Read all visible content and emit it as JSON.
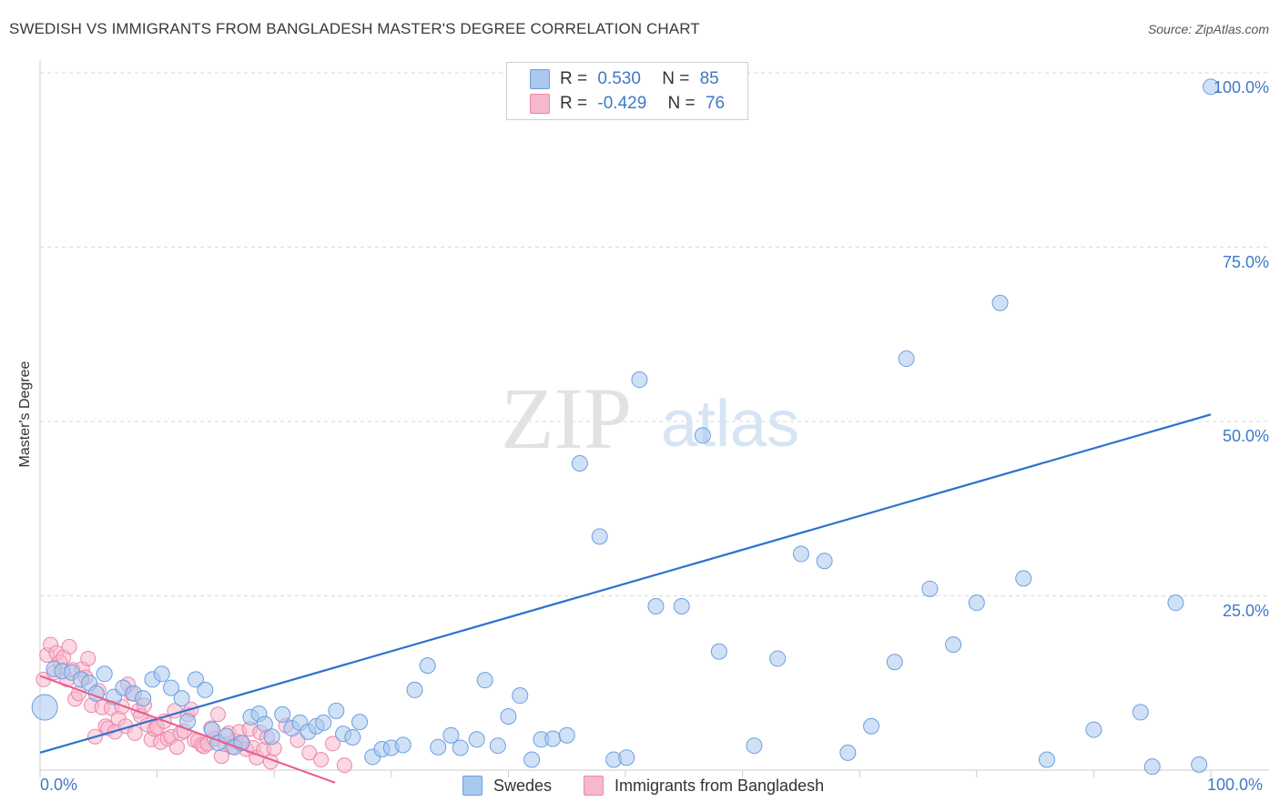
{
  "title": "SWEDISH VS IMMIGRANTS FROM BANGLADESH MASTER'S DEGREE CORRELATION CHART",
  "source": "Source: ZipAtlas.com",
  "watermark": {
    "zip": "ZIP",
    "atlas": "atlas"
  },
  "colors": {
    "blue_fill": "#a9c9ef",
    "blue_stroke": "#6b9fe0",
    "blue_line": "#2e72cc",
    "pink_fill": "#f6b8cd",
    "pink_stroke": "#ee86a8",
    "pink_line": "#e85c8a",
    "tick_text": "#3f78c8",
    "grid": "#d9d9d9"
  },
  "legend_top": {
    "rows": [
      {
        "r_label": "R =",
        "r_value": "0.530",
        "n_label": "N =",
        "n_value": "85"
      },
      {
        "r_label": "R =",
        "r_value": "-0.429",
        "n_label": "N =",
        "n_value": "76"
      }
    ]
  },
  "chart_data": {
    "type": "scatter",
    "title": "SWEDISH VS IMMIGRANTS FROM BANGLADESH MASTER'S DEGREE CORRELATION CHART",
    "xlabel": "",
    "ylabel": "Master's Degree",
    "xlim": [
      0,
      100
    ],
    "ylim": [
      0,
      100
    ],
    "x_ticks": [
      "0.0%",
      "100.0%"
    ],
    "y_ticks": [
      "25.0%",
      "50.0%",
      "75.0%",
      "100.0%"
    ],
    "y_tick_values": [
      25,
      50,
      75,
      100
    ],
    "legend_position": "bottom",
    "series": [
      {
        "name": "Swedes",
        "r": 0.53,
        "n": 85,
        "trend": {
          "x": [
            0,
            100
          ],
          "y": [
            2.5,
            51
          ]
        },
        "points": [
          [
            0.4,
            9
          ],
          [
            1.2,
            14.5
          ],
          [
            1.9,
            14.2
          ],
          [
            2.7,
            14
          ],
          [
            3.5,
            13
          ],
          [
            4.2,
            12.5
          ],
          [
            4.8,
            11
          ],
          [
            5.5,
            13.8
          ],
          [
            6.3,
            10.5
          ],
          [
            7.1,
            11.8
          ],
          [
            8.0,
            11
          ],
          [
            8.8,
            10.3
          ],
          [
            9.6,
            13
          ],
          [
            10.4,
            13.8
          ],
          [
            11.2,
            11.8
          ],
          [
            12.1,
            10.3
          ],
          [
            12.6,
            7
          ],
          [
            13.3,
            13
          ],
          [
            14.1,
            11.5
          ],
          [
            14.7,
            5.8
          ],
          [
            15.2,
            3.9
          ],
          [
            15.9,
            4.9
          ],
          [
            16.6,
            3.3
          ],
          [
            17.2,
            3.9
          ],
          [
            18.0,
            7.6
          ],
          [
            18.7,
            8.1
          ],
          [
            19.2,
            6.6
          ],
          [
            19.8,
            4.8
          ],
          [
            20.7,
            8
          ],
          [
            21.5,
            6
          ],
          [
            22.2,
            6.8
          ],
          [
            22.9,
            5.5
          ],
          [
            23.6,
            6.3
          ],
          [
            24.2,
            6.8
          ],
          [
            25.3,
            8.5
          ],
          [
            25.9,
            5.2
          ],
          [
            26.7,
            4.7
          ],
          [
            27.3,
            6.9
          ],
          [
            28.4,
            1.9
          ],
          [
            29.2,
            3
          ],
          [
            30.0,
            3.2
          ],
          [
            31.0,
            3.6
          ],
          [
            32.0,
            11.5
          ],
          [
            33.1,
            15
          ],
          [
            34.0,
            3.3
          ],
          [
            35.1,
            5
          ],
          [
            35.9,
            3.2
          ],
          [
            37.3,
            4.4
          ],
          [
            38.0,
            12.9
          ],
          [
            39.1,
            3.5
          ],
          [
            40.0,
            7.7
          ],
          [
            41.0,
            10.7
          ],
          [
            42.0,
            1.5
          ],
          [
            42.8,
            4.4
          ],
          [
            43.8,
            4.5
          ],
          [
            45.0,
            5
          ],
          [
            46.1,
            44
          ],
          [
            47.8,
            33.5
          ],
          [
            49.0,
            1.5
          ],
          [
            50.1,
            1.8
          ],
          [
            51.2,
            56
          ],
          [
            52.6,
            23.5
          ],
          [
            54.8,
            23.5
          ],
          [
            56.6,
            48
          ],
          [
            58.0,
            17
          ],
          [
            61.0,
            3.5
          ],
          [
            63.0,
            16
          ],
          [
            65.0,
            31
          ],
          [
            67.0,
            30
          ],
          [
            69.0,
            2.5
          ],
          [
            71.0,
            6.3
          ],
          [
            73.0,
            15.5
          ],
          [
            74.0,
            59
          ],
          [
            76.0,
            26
          ],
          [
            78.0,
            18
          ],
          [
            80.0,
            24
          ],
          [
            82.0,
            67
          ],
          [
            84.0,
            27.5
          ],
          [
            86.0,
            1.5
          ],
          [
            90.0,
            5.8
          ],
          [
            94.0,
            8.3
          ],
          [
            95.0,
            0.5
          ],
          [
            97.0,
            24
          ],
          [
            99.0,
            0.8
          ],
          [
            100.0,
            98
          ]
        ]
      },
      {
        "name": "Immigrants from Bangladesh",
        "r": -0.429,
        "n": 76,
        "trend": {
          "x": [
            0,
            25.2
          ],
          "y": [
            13.5,
            -1.8
          ]
        },
        "points": [
          [
            0.3,
            13
          ],
          [
            0.6,
            16.5
          ],
          [
            0.9,
            18
          ],
          [
            1.2,
            14
          ],
          [
            1.4,
            16.8
          ],
          [
            1.7,
            15.5
          ],
          [
            2.0,
            16.2
          ],
          [
            2.3,
            13
          ],
          [
            2.5,
            17.7
          ],
          [
            2.8,
            14.4
          ],
          [
            3.0,
            10.2
          ],
          [
            3.3,
            11
          ],
          [
            3.6,
            14.5
          ],
          [
            3.9,
            13.3
          ],
          [
            4.1,
            16
          ],
          [
            4.4,
            9.3
          ],
          [
            4.7,
            4.8
          ],
          [
            5.0,
            11.4
          ],
          [
            5.3,
            9
          ],
          [
            5.6,
            6.3
          ],
          [
            5.8,
            6
          ],
          [
            6.1,
            8.9
          ],
          [
            6.4,
            5.5
          ],
          [
            6.7,
            7.4
          ],
          [
            7.0,
            9.1
          ],
          [
            7.3,
            6.3
          ],
          [
            7.5,
            12.3
          ],
          [
            7.8,
            11
          ],
          [
            8.1,
            5.3
          ],
          [
            8.4,
            8.5
          ],
          [
            8.6,
            7.8
          ],
          [
            8.9,
            9.3
          ],
          [
            9.2,
            6.5
          ],
          [
            9.5,
            4.4
          ],
          [
            9.8,
            5.9
          ],
          [
            10.0,
            6.1
          ],
          [
            10.3,
            4
          ],
          [
            10.6,
            7
          ],
          [
            10.9,
            4.5
          ],
          [
            11.2,
            4.8
          ],
          [
            11.5,
            8.5
          ],
          [
            11.7,
            3.3
          ],
          [
            12.0,
            5.3
          ],
          [
            12.3,
            5.6
          ],
          [
            12.6,
            8
          ],
          [
            12.9,
            8.7
          ],
          [
            13.2,
            4.3
          ],
          [
            13.5,
            4.2
          ],
          [
            13.8,
            3.6
          ],
          [
            14.0,
            3.4
          ],
          [
            14.3,
            3.8
          ],
          [
            14.6,
            6
          ],
          [
            14.9,
            4.5
          ],
          [
            15.2,
            8
          ],
          [
            15.5,
            2
          ],
          [
            15.8,
            3.7
          ],
          [
            16.1,
            5.3
          ],
          [
            16.4,
            3.3
          ],
          [
            16.7,
            4.2
          ],
          [
            17.0,
            5.5
          ],
          [
            17.3,
            3.9
          ],
          [
            17.6,
            3
          ],
          [
            17.9,
            5.9
          ],
          [
            18.2,
            3.2
          ],
          [
            18.5,
            1.8
          ],
          [
            18.8,
            5.4
          ],
          [
            19.1,
            2.9
          ],
          [
            19.4,
            4.7
          ],
          [
            19.7,
            1.2
          ],
          [
            20.0,
            3.1
          ],
          [
            21.0,
            6.4
          ],
          [
            22.0,
            4.3
          ],
          [
            23.0,
            2.5
          ],
          [
            24.0,
            1.5
          ],
          [
            25.0,
            3.8
          ],
          [
            26.0,
            0.7
          ]
        ]
      }
    ]
  },
  "legend_bottom": [
    {
      "label": "Swedes"
    },
    {
      "label": "Immigrants from Bangladesh"
    }
  ]
}
